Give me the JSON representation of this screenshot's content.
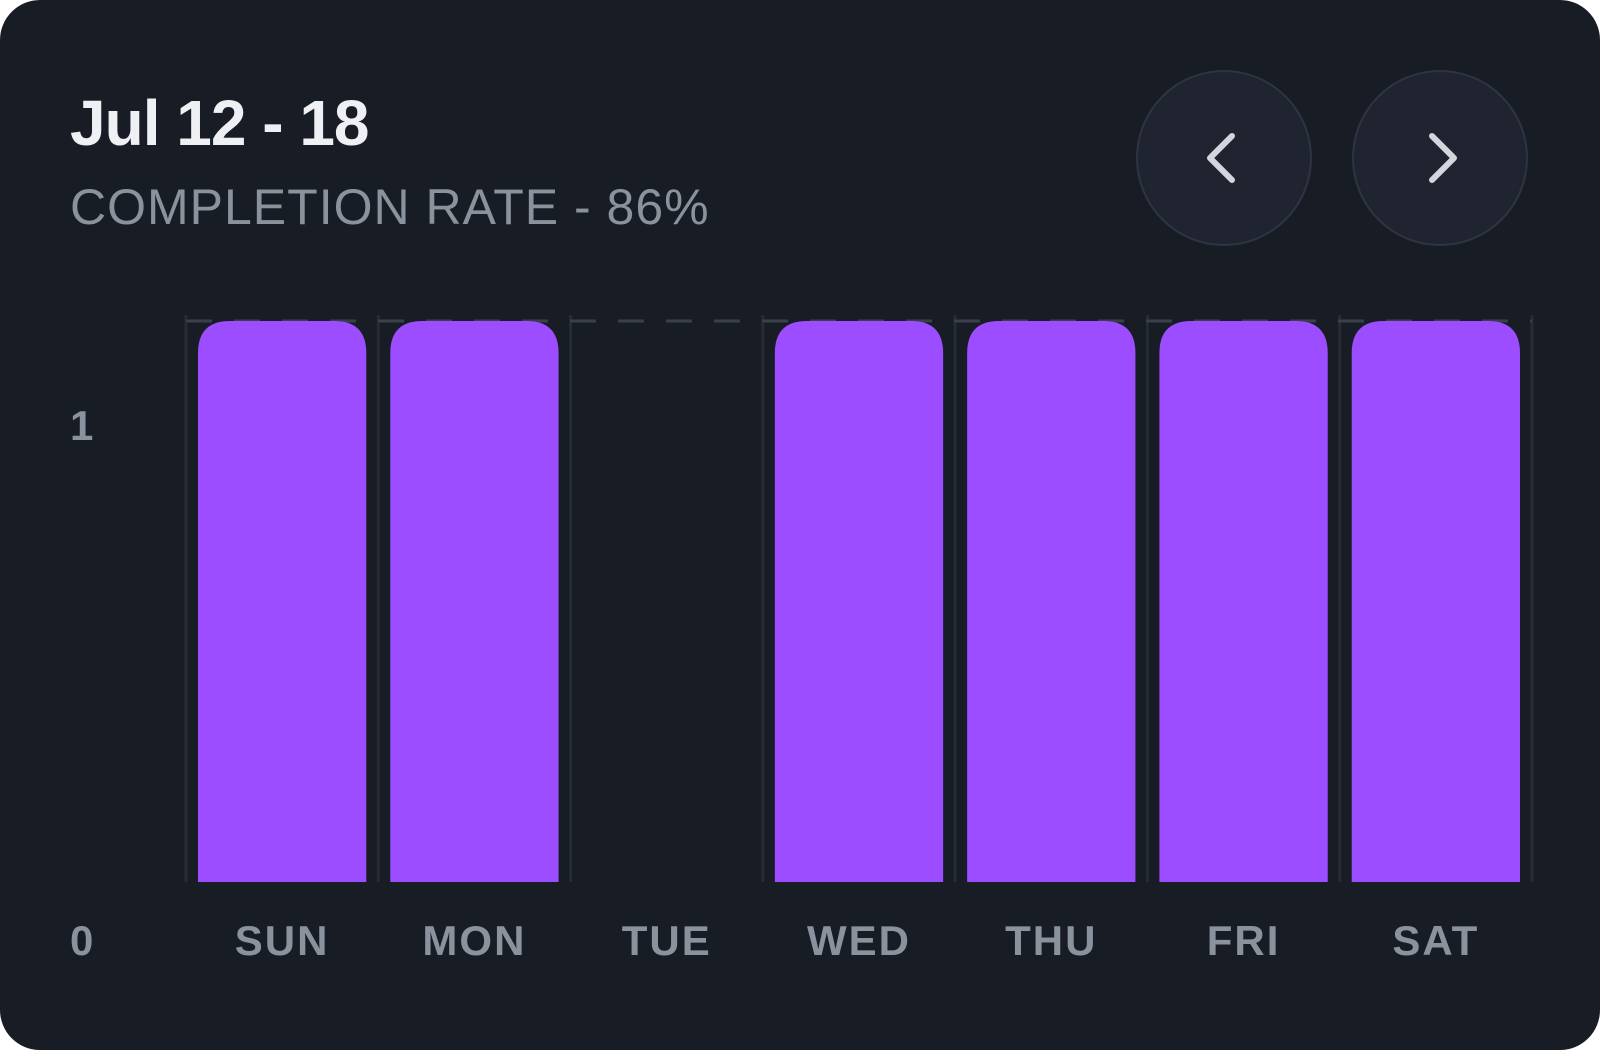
{
  "header": {
    "title": "Jul 12 - 18",
    "subtitle": "COMPLETION RATE - 86%",
    "prev_icon": "chevron-left-icon",
    "next_icon": "chevron-right-icon"
  },
  "colors": {
    "background": "#181c25",
    "bar": "#9b4dff",
    "text_primary": "#eef0f4",
    "text_secondary": "#8a929e",
    "gridline": "#262b35",
    "target_line": "#3a404b",
    "button_bg": "#1f2430",
    "icon": "#d2d6dd"
  },
  "chart_data": {
    "type": "bar",
    "categories": [
      "SUN",
      "MON",
      "TUE",
      "WED",
      "THU",
      "FRI",
      "SAT"
    ],
    "values": [
      1,
      1,
      0,
      1,
      1,
      1,
      1
    ],
    "ylim": [
      0,
      1
    ],
    "yticks": [
      "0",
      "1"
    ],
    "reference_line": {
      "value": 1,
      "style": "dashed"
    },
    "grid": "vertical",
    "xlabel": "",
    "ylabel": ""
  }
}
